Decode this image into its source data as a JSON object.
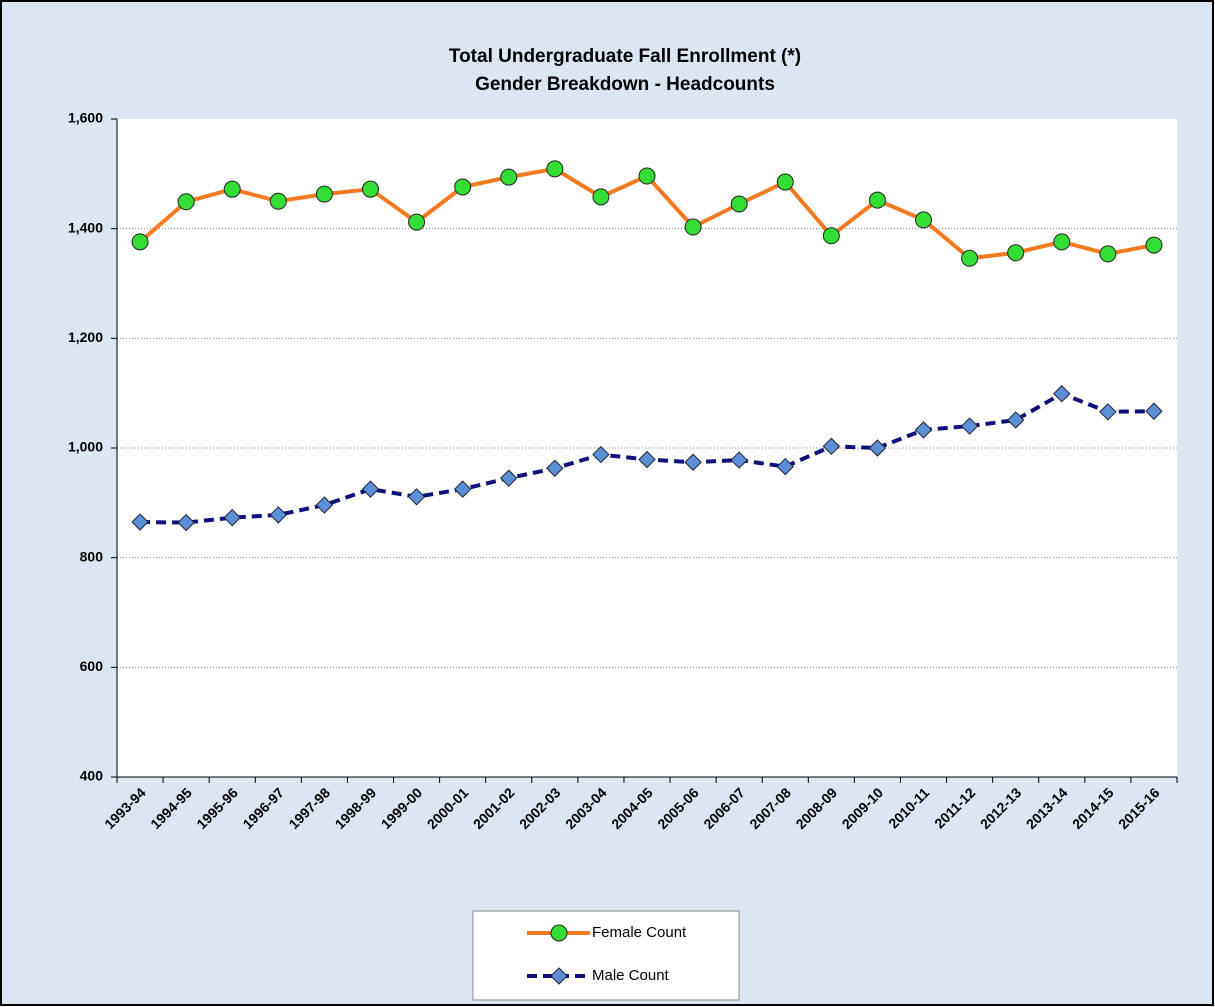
{
  "chart_data": {
    "type": "line",
    "title": "Total Undergraduate Fall Enrollment (*)",
    "subtitle": "Gender Breakdown  -  Headcounts",
    "categories": [
      "1993-94",
      "1994-95",
      "1995-96",
      "1996-97",
      "1997-98",
      "1998-99",
      "1999-00",
      "2000-01",
      "2001-02",
      "2002-03",
      "2003-04",
      "2004-05",
      "2005-06",
      "2006-07",
      "2007-08",
      "2008-09",
      "2009-10",
      "2010-11",
      "2011-12",
      "2012-13",
      "2013-14",
      "2014-15",
      "2015-16"
    ],
    "series": [
      {
        "name": "Female Count",
        "color": "#f47a20",
        "marker": "circle",
        "marker_color": "#33dd33",
        "dashed": false,
        "values": [
          1376,
          1449,
          1472,
          1450,
          1463,
          1472,
          1412,
          1476,
          1494,
          1509,
          1458,
          1496,
          1403,
          1445,
          1485,
          1387,
          1452,
          1416,
          1346,
          1356,
          1376,
          1354,
          1370
        ]
      },
      {
        "name": "Male Count",
        "color": "#10107a",
        "marker": "diamond",
        "marker_color": "#5b8fd6",
        "dashed": true,
        "values": [
          865,
          864,
          873,
          878,
          896,
          925,
          911,
          925,
          945,
          963,
          988,
          979,
          974,
          978,
          966,
          1003,
          1000,
          1033,
          1040,
          1051,
          1099,
          1066,
          1067
        ]
      }
    ],
    "ylim": [
      400,
      1600
    ],
    "yticks": [
      400,
      600,
      800,
      {
        "value": 1000,
        "label": "1,000"
      },
      {
        "value": 1200,
        "label": "1,200"
      },
      {
        "value": 1400,
        "label": "1,400"
      },
      {
        "value": 1600,
        "label": "1,600"
      }
    ],
    "grid": true,
    "legend": "bottom"
  }
}
